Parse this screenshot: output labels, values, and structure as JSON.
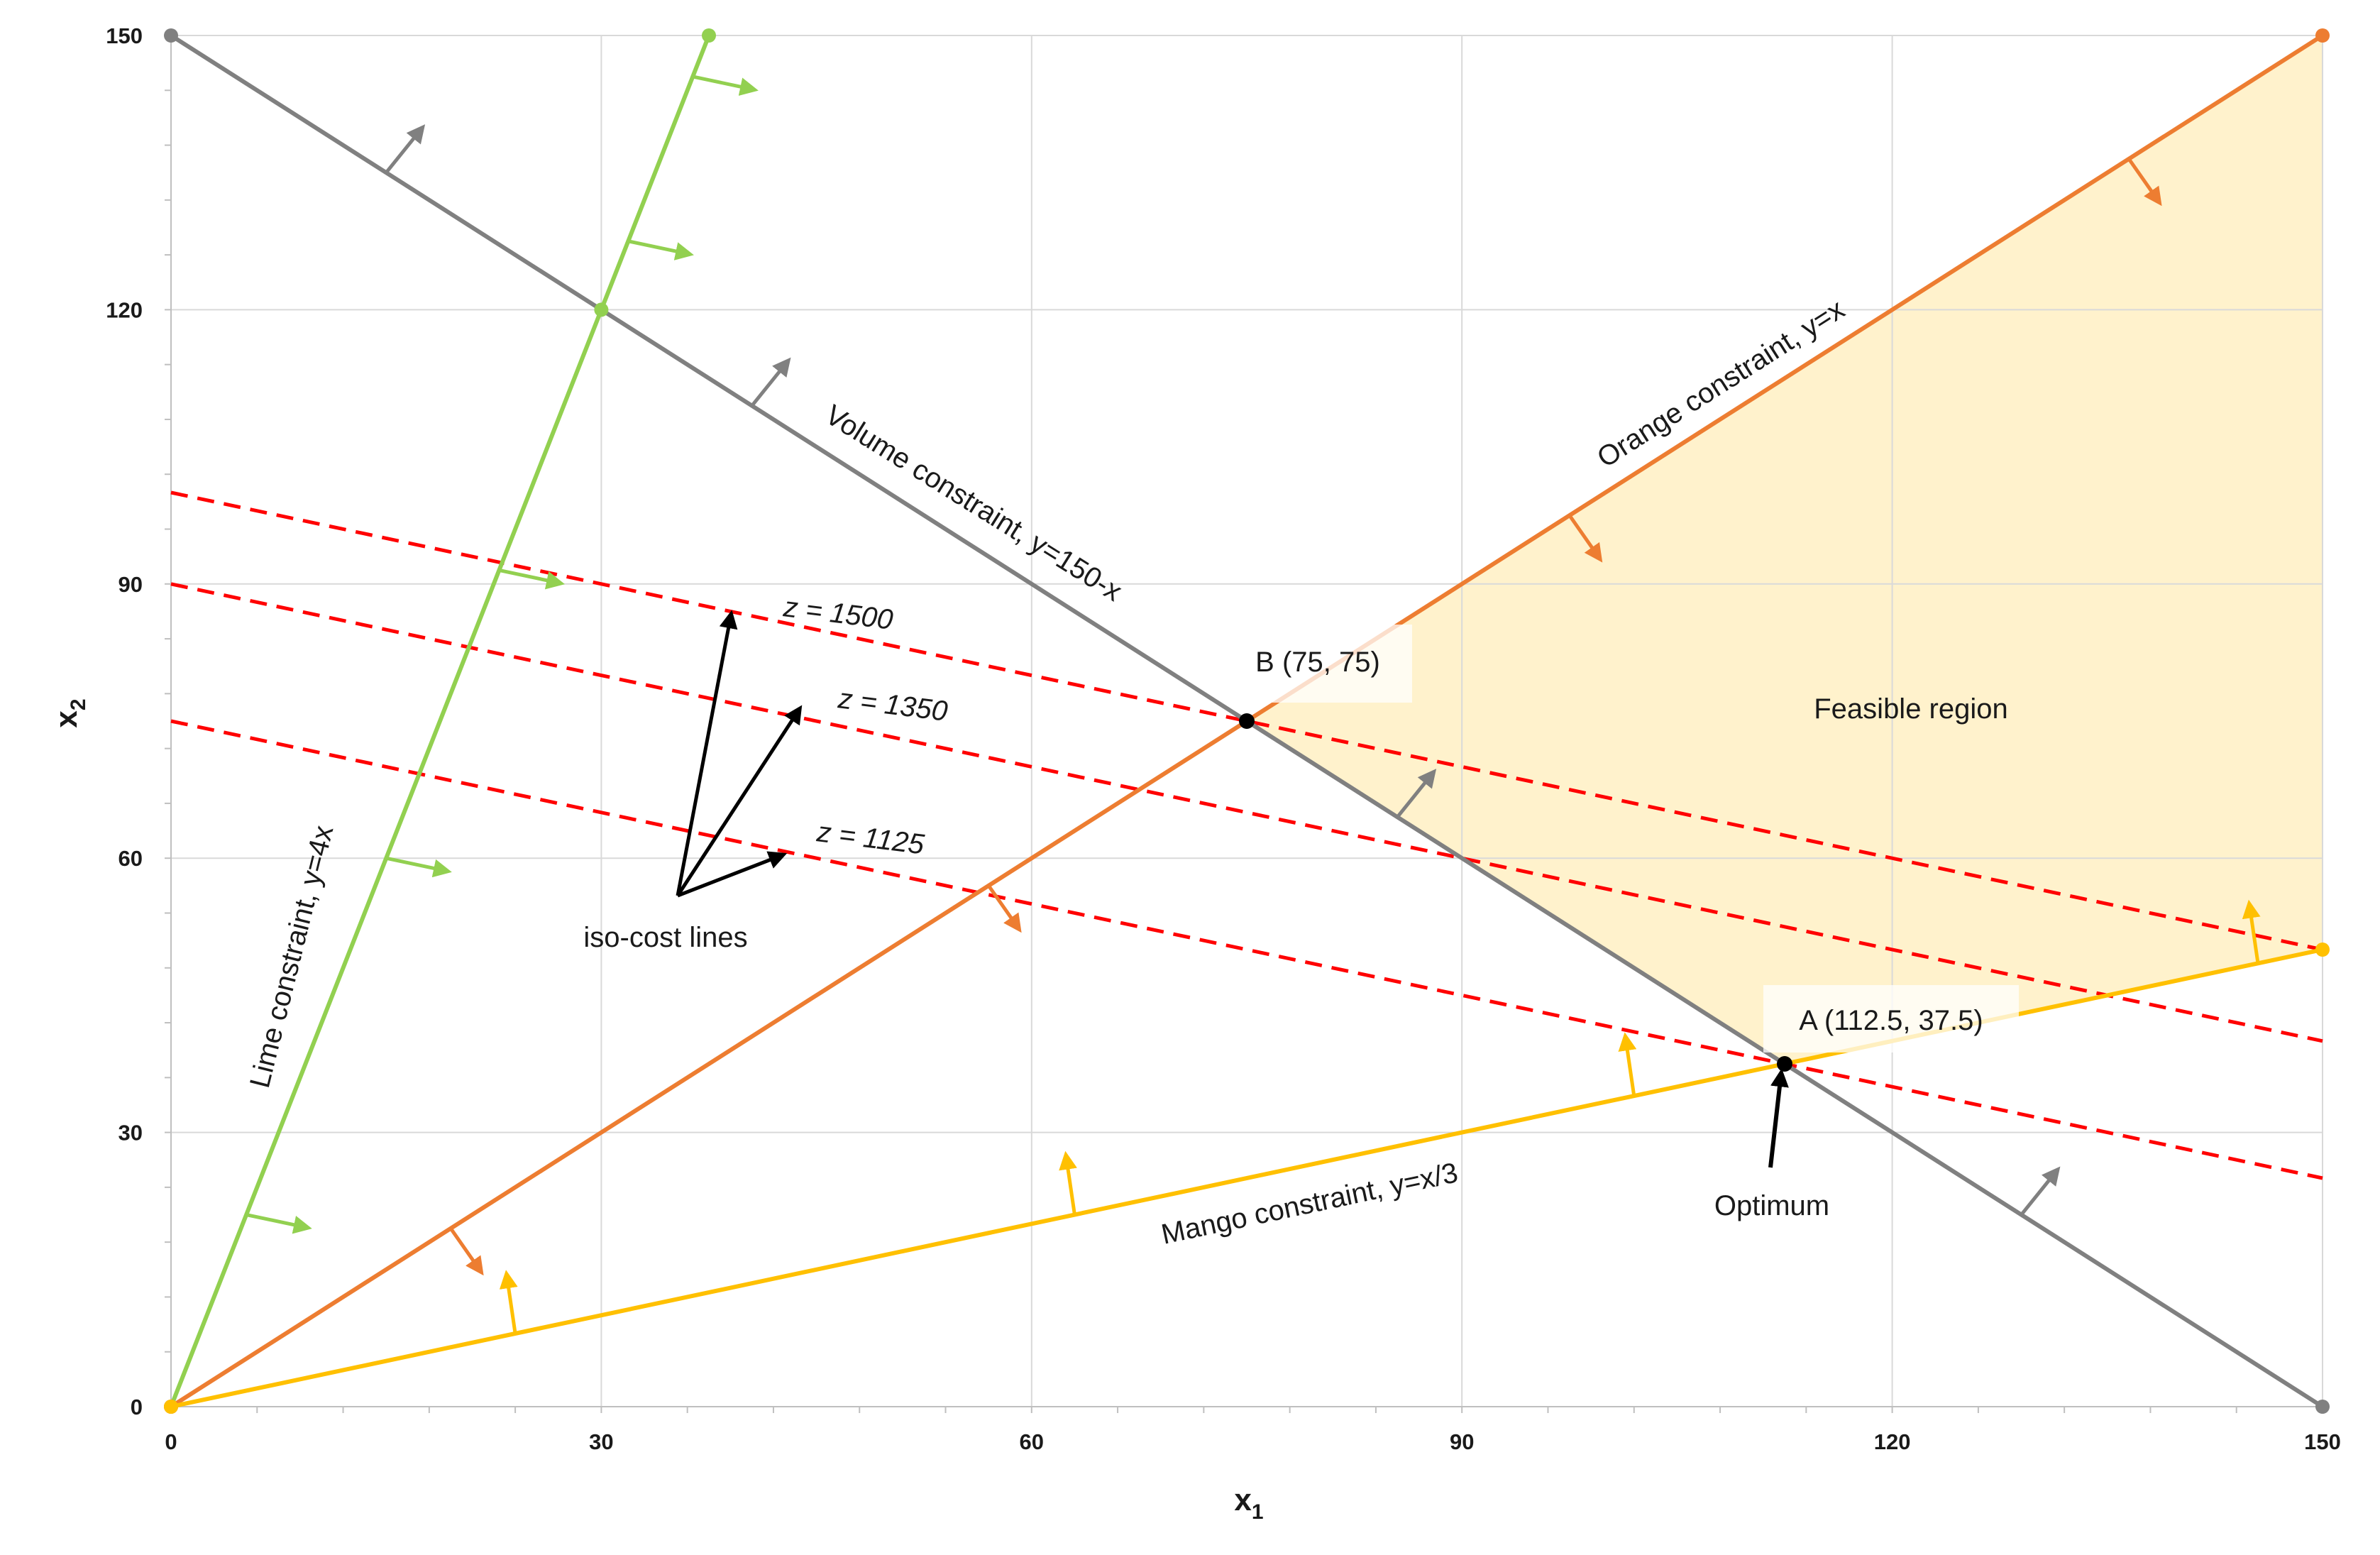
{
  "chart_data": {
    "type": "line",
    "xlabel": "x",
    "xlabel_sub": "1",
    "ylabel": "x",
    "ylabel_sub": "2",
    "xlim": [
      0,
      150
    ],
    "ylim": [
      0,
      150
    ],
    "x_ticks": [
      0,
      30,
      60,
      90,
      120,
      150
    ],
    "y_ticks": [
      0,
      30,
      60,
      90,
      120,
      150
    ],
    "grid": true,
    "colors": {
      "volume": "#808080",
      "lime": "#92d050",
      "orange": "#ed7d31",
      "mango": "#ffc000",
      "isocost": "#ff0000",
      "feasible_fill": "#fff2cc",
      "grid": "#d9d9d9"
    },
    "feasible_region": {
      "label": "Feasible region",
      "vertices": [
        [
          75,
          75
        ],
        [
          150,
          150
        ],
        [
          150,
          50
        ],
        [
          112.5,
          37.5
        ]
      ]
    },
    "constraints": [
      {
        "id": "volume",
        "label": "Volume constraint, y=150-x",
        "points": [
          [
            0,
            150
          ],
          [
            150,
            0
          ]
        ]
      },
      {
        "id": "lime",
        "label": "Lime constraint, y=4x",
        "points": [
          [
            0,
            0
          ],
          [
            37.5,
            150
          ]
        ]
      },
      {
        "id": "orange",
        "label": "Orange constraint, y=x",
        "points": [
          [
            0,
            0
          ],
          [
            150,
            150
          ]
        ]
      },
      {
        "id": "mango",
        "label": "Mango constraint, y=x/3",
        "points": [
          [
            0,
            0
          ],
          [
            150,
            50
          ]
        ]
      }
    ],
    "iso_cost_lines": [
      {
        "label": "z = 1500",
        "points": [
          [
            0,
            100
          ],
          [
            150,
            50
          ]
        ]
      },
      {
        "label": "z = 1350",
        "points": [
          [
            0,
            90
          ],
          [
            150,
            40
          ]
        ]
      },
      {
        "label": "z = 1125",
        "points": [
          [
            0,
            75
          ],
          [
            150,
            25
          ]
        ]
      }
    ],
    "iso_cost_caption": "iso-cost lines",
    "points": [
      {
        "id": "A",
        "label": "A (112.5, 37.5)",
        "x": 112.5,
        "y": 37.5
      },
      {
        "id": "B",
        "label": "B (75, 75)",
        "x": 75,
        "y": 75
      }
    ],
    "optimum_label": "Optimum"
  }
}
